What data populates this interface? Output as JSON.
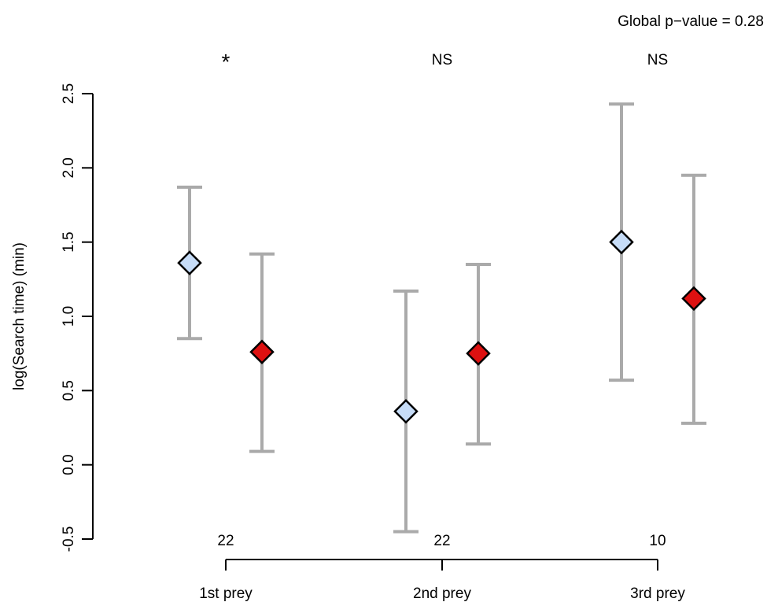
{
  "chart_data": {
    "type": "scatter",
    "title": "",
    "xlabel": "",
    "ylabel": "log(Search time) (min)",
    "ylim": [
      -0.5,
      2.5
    ],
    "yticks": [
      "-0.5",
      "0.0",
      "0.5",
      "1.0",
      "1.5",
      "2.0",
      "2.5"
    ],
    "ytick_values": [
      -0.5,
      0.0,
      0.5,
      1.0,
      1.5,
      2.0,
      2.5
    ],
    "categories": [
      "1st prey",
      "2nd prey",
      "3rd prey"
    ],
    "sample_sizes": [
      "22",
      "22",
      "10"
    ],
    "significance": [
      "*",
      "NS",
      "NS"
    ],
    "global_p": "Global p−value = 0.28",
    "grid": false,
    "legend": "none",
    "series": [
      {
        "color": "#c6dcf7",
        "marker": "diamond",
        "values": [
          1.36,
          0.36,
          1.5
        ],
        "lower": [
          0.85,
          -0.45,
          0.57
        ],
        "upper": [
          1.87,
          1.17,
          2.43
        ]
      },
      {
        "color": "#dd1111",
        "marker": "diamond",
        "values": [
          0.76,
          0.75,
          1.12
        ],
        "lower": [
          0.09,
          0.14,
          0.28
        ],
        "upper": [
          1.42,
          1.35,
          1.95
        ]
      }
    ],
    "errorbar_color": "#aaaaaa"
  }
}
